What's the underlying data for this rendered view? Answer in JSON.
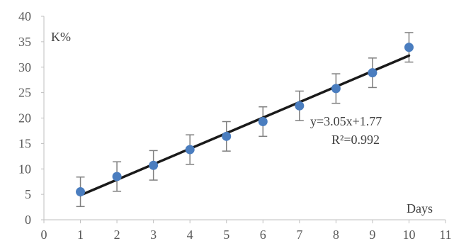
{
  "chart_data": {
    "type": "scatter",
    "title": "",
    "xlabel": "Days",
    "ylabel": "K%",
    "xlim": [
      0,
      11
    ],
    "ylim": [
      0,
      40
    ],
    "x_ticks": [
      0,
      1,
      2,
      3,
      4,
      5,
      6,
      7,
      8,
      9,
      10,
      11
    ],
    "y_ticks": [
      0,
      5,
      10,
      15,
      20,
      25,
      30,
      35,
      40
    ],
    "grid": false,
    "legend": "none",
    "series": [
      {
        "x": [
          1,
          2,
          3,
          4,
          5,
          6,
          7,
          8,
          9,
          10
        ],
        "y": [
          5.5,
          8.5,
          10.7,
          13.8,
          16.4,
          19.3,
          22.4,
          25.8,
          28.9,
          33.9
        ],
        "error": [
          2.9,
          2.9,
          2.9,
          2.9,
          2.9,
          2.9,
          2.9,
          2.9,
          2.9,
          2.9
        ]
      }
    ],
    "trendline": {
      "slope": 3.05,
      "intercept": 1.77,
      "equation": "y=3.05x+1.77",
      "r2": "R²=0.992"
    },
    "colors": {
      "marker": "#4a7dbf",
      "trendline": "#1a1a1a",
      "error_bar": "#7f7f7f",
      "axis": "#bfbfbf"
    }
  }
}
